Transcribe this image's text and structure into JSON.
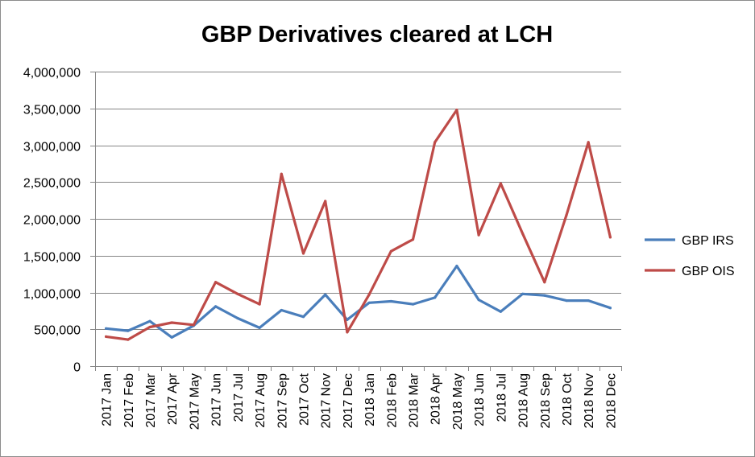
{
  "chart_data": {
    "type": "line",
    "title": "GBP Derivatives cleared at LCH",
    "xlabel": "",
    "ylabel": "",
    "ylim": [
      0,
      4000000
    ],
    "yticks": [
      0,
      500000,
      1000000,
      1500000,
      2000000,
      2500000,
      3000000,
      3500000,
      4000000
    ],
    "ytick_labels": [
      "0",
      "500,000",
      "1,000,000",
      "1,500,000",
      "2,000,000",
      "2,500,000",
      "3,000,000",
      "3,500,000",
      "4,000,000"
    ],
    "grid": "horizontal",
    "legend_position": "right",
    "categories": [
      "2017 Jan",
      "2017 Feb",
      "2017 Mar",
      "2017 Apr",
      "2017 May",
      "2017 Jun",
      "2017 Jul",
      "2017 Aug",
      "2017 Sep",
      "2017 Oct",
      "2017 Nov",
      "2017 Dec",
      "2018 Jan",
      "2018 Feb",
      "2018 Mar",
      "2018 Apr",
      "2018 May",
      "2018 Jun",
      "2018 Jul",
      "2018 Aug",
      "2018 Sep",
      "2018 Oct",
      "2018 Nov",
      "2018 Dec"
    ],
    "series": [
      {
        "name": "GBP IRS",
        "color": "#4a7ebb",
        "values": [
          510000,
          480000,
          610000,
          390000,
          550000,
          810000,
          650000,
          520000,
          760000,
          670000,
          970000,
          630000,
          860000,
          880000,
          840000,
          930000,
          1360000,
          900000,
          740000,
          980000,
          960000,
          890000,
          890000,
          790000
        ]
      },
      {
        "name": "GBP OIS",
        "color": "#be4b48",
        "values": [
          400000,
          360000,
          530000,
          590000,
          560000,
          1140000,
          980000,
          840000,
          2610000,
          1530000,
          2240000,
          460000,
          970000,
          1560000,
          1720000,
          3040000,
          3480000,
          1780000,
          2480000,
          1800000,
          1140000,
          2050000,
          3040000,
          1750000
        ]
      }
    ]
  }
}
